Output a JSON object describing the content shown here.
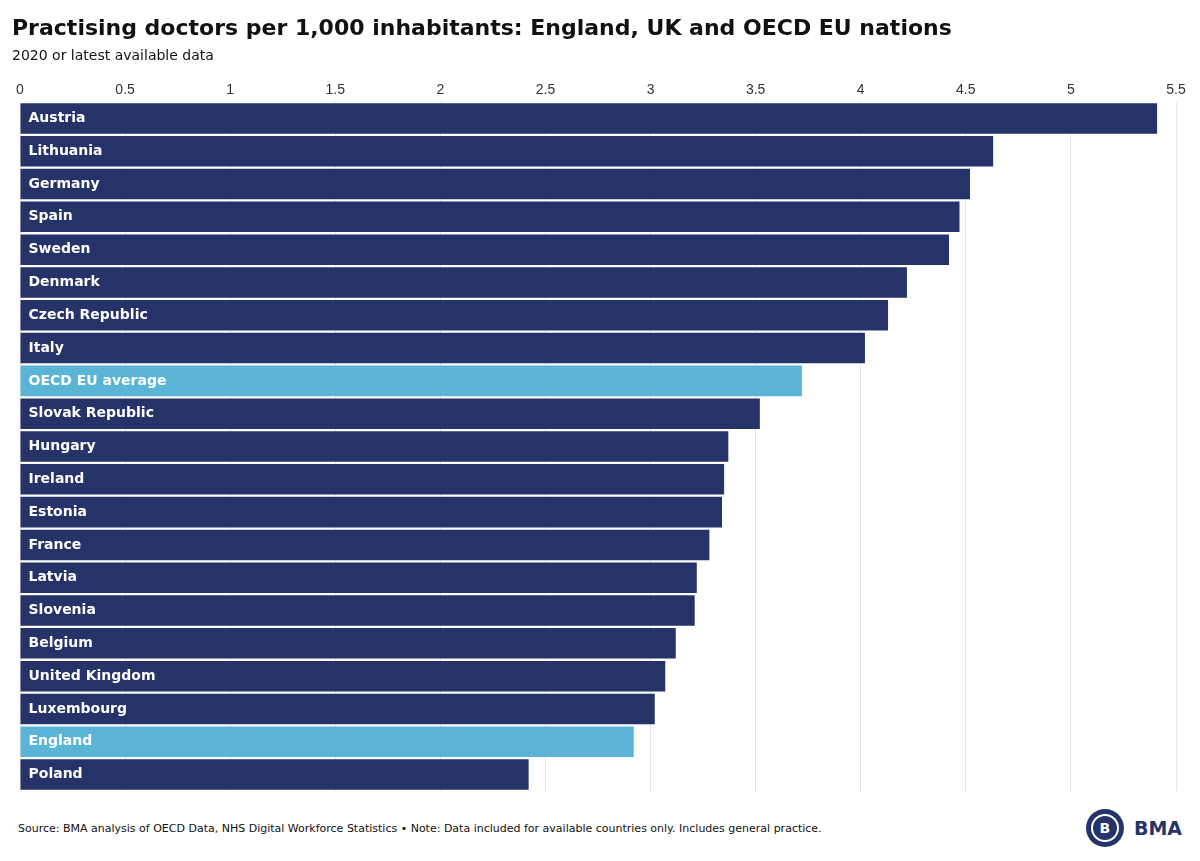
{
  "chart_data": {
    "type": "bar",
    "orientation": "horizontal",
    "title": "Practising doctors per 1,000 inhabitants: England, UK and OECD EU nations",
    "subtitle": "2020 or latest available data",
    "annotations": [
      "Source: BMA analysis of OECD Data, NHS Digital Workforce Statistics • Note: Data included for available countries only. Includes general practice.",
      "B",
      "BMA"
    ],
    "categories": [
      "Austria",
      "Lithuania",
      "Germany",
      "Spain",
      "Sweden",
      "Denmark",
      "Czech Republic",
      "Italy",
      "OECD EU average",
      "Slovak Republic",
      "Hungary",
      "Ireland",
      "Estonia",
      "France",
      "Latvia",
      "Slovenia",
      "Belgium",
      "United Kingdom",
      "Luxembourg",
      "England",
      "Poland"
    ],
    "values": [
      5.41,
      4.63,
      4.52,
      4.47,
      4.42,
      4.22,
      4.13,
      4.02,
      3.72,
      3.52,
      3.37,
      3.35,
      3.34,
      3.28,
      3.22,
      3.21,
      3.12,
      3.07,
      3.02,
      2.92,
      2.42
    ],
    "colors": [
      "#253368",
      "#253368",
      "#253368",
      "#253368",
      "#253368",
      "#253368",
      "#253368",
      "#253368",
      "#5ab4d6",
      "#253368",
      "#253368",
      "#253368",
      "#253368",
      "#253368",
      "#253368",
      "#253368",
      "#253368",
      "#253368",
      "#253368",
      "#5ab4d6",
      "#253368"
    ],
    "color": "#253368",
    "xlim": [
      0,
      5.5
    ],
    "xticks": [
      0,
      0.5,
      1,
      1.5,
      2,
      2.5,
      3,
      3.5,
      4,
      4.5,
      5,
      5.5
    ],
    "grid": true,
    "tick_labels": "x"
  }
}
